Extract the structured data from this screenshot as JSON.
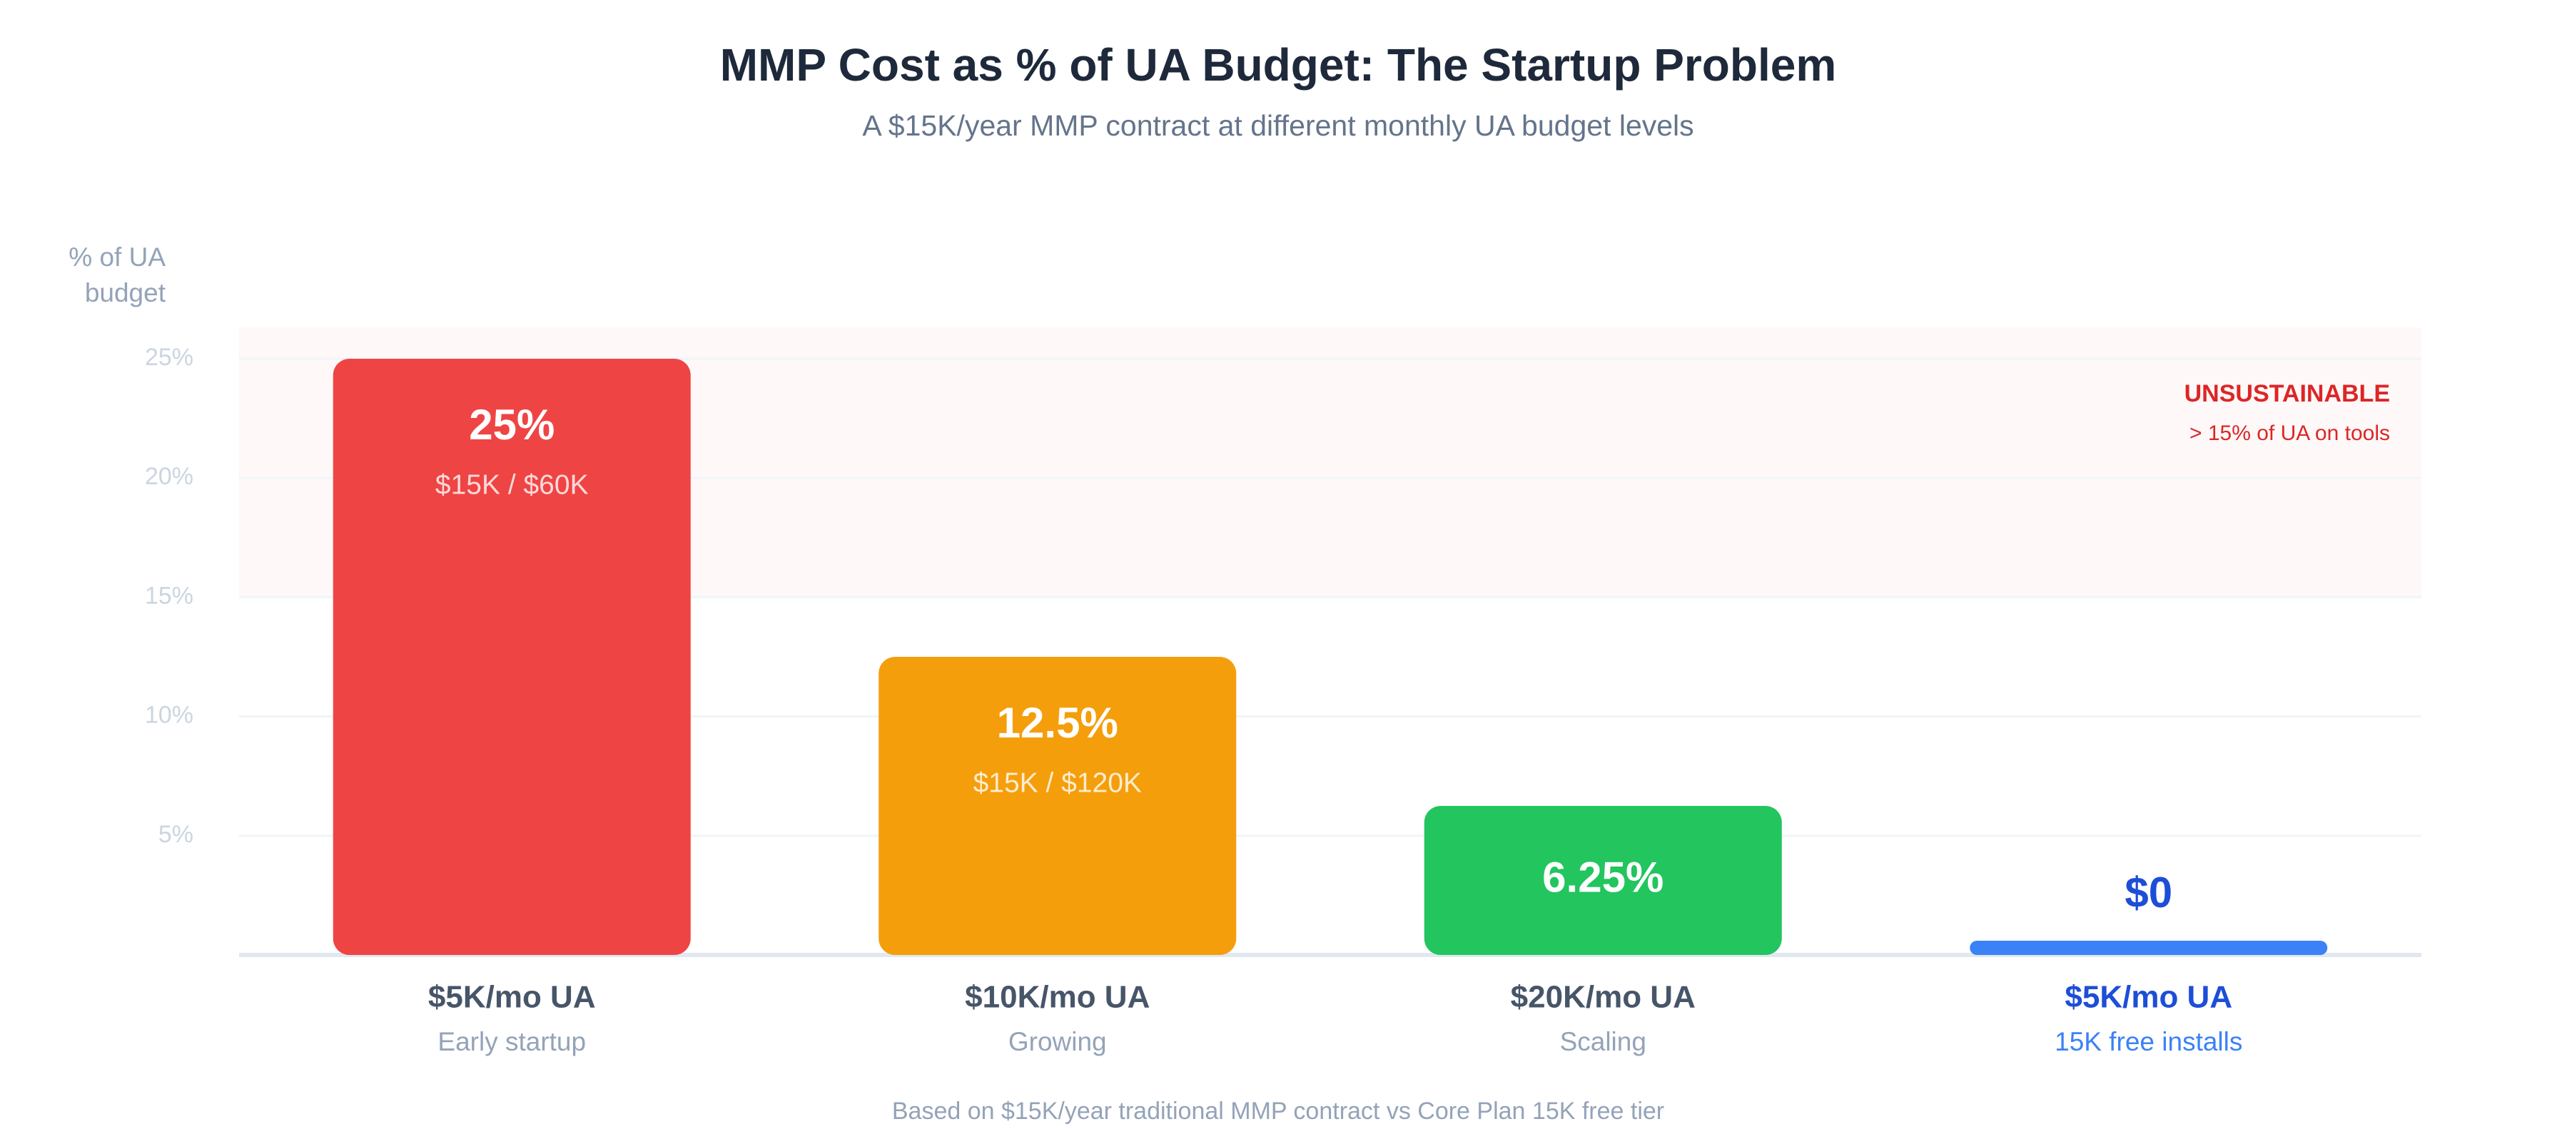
{
  "chart_data": {
    "type": "bar",
    "title": "MMP Cost as % of UA Budget: The Startup Problem",
    "subtitle": "A $15K/year MMP contract at different monthly UA budget levels",
    "y_label": "% of UA budget",
    "categories": [
      "$5K/mo UA",
      "$10K/mo UA",
      "$20K/mo UA",
      "$5K/mo UA"
    ],
    "category_sublabels": [
      "Early startup",
      "Growing",
      "Scaling",
      "15K free installs"
    ],
    "values": [
      25,
      12.5,
      6.25,
      0
    ],
    "value_labels": [
      "25%",
      "12.5%",
      "6.25%",
      "$0"
    ],
    "detail_labels": [
      "$15K / $60K",
      "$15K / $120K",
      null,
      null
    ],
    "colors": [
      "#ef4444",
      "#f59e0b",
      "#22c55e",
      "#3b82f6"
    ],
    "category_colors": [
      "#475569",
      "#475569",
      "#475569",
      "#1d4ed8"
    ],
    "ylim": [
      0,
      25
    ],
    "yticks": [
      {
        "value": 5,
        "label": "5%"
      },
      {
        "value": 10,
        "label": "10%"
      },
      {
        "value": 15,
        "label": "15%"
      },
      {
        "value": 20,
        "label": "20%"
      },
      {
        "value": 25,
        "label": "25%"
      }
    ],
    "grid": true,
    "zone": {
      "from": 15,
      "label": "UNSUSTAINABLE",
      "sublabel": "> 15% of UA on tools",
      "color": "#dc2626"
    },
    "footnote": "Based on $15K/year traditional MMP contract vs Core Plan 15K free tier"
  }
}
